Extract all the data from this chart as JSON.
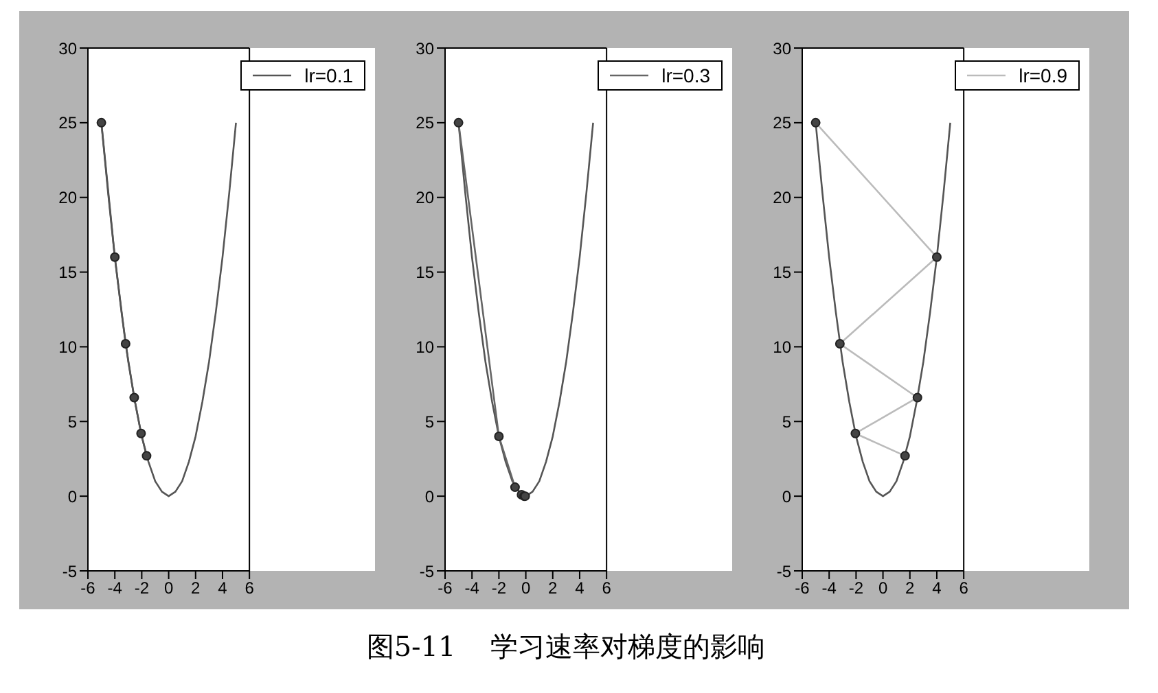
{
  "chart_data": [
    {
      "type": "line",
      "annotations": [
        "图5-11    学习速率对梯度的影响"
      ],
      "xlim": [
        -6,
        6
      ],
      "xticks": [
        -6,
        -4,
        -2,
        0,
        2,
        4,
        6
      ],
      "ylim": [
        -5,
        30
      ],
      "yticks": [
        -5,
        0,
        5,
        10,
        15,
        20,
        25,
        30
      ],
      "legend": "top right",
      "series": [
        {
          "color": "#555555",
          "marker": "none",
          "x": [
            -5,
            -4.5,
            -4,
            -3.5,
            -3,
            -2.5,
            -2,
            -1.5,
            -1,
            -0.5,
            0,
            0.5,
            1,
            1.5,
            2,
            2.5,
            3,
            3.5,
            4,
            4.5,
            5
          ],
          "values": [
            25,
            20.3,
            16,
            12.3,
            9,
            6.3,
            4,
            2.3,
            1,
            0.3,
            0,
            0.3,
            1,
            2.3,
            4,
            6.3,
            9,
            12.3,
            16,
            20.3,
            25
          ]
        },
        {
          "name": "lr=0.1",
          "color": "#555555",
          "marker": "circle",
          "x": [
            -5,
            -4,
            -3.2,
            -2.56,
            -2.05,
            -1.64
          ],
          "values": [
            25,
            16,
            10.2,
            6.6,
            4.2,
            2.7
          ]
        }
      ]
    },
    {
      "type": "line",
      "xlim": [
        -6,
        6
      ],
      "xticks": [
        -6,
        -4,
        -2,
        0,
        2,
        4,
        6
      ],
      "ylim": [
        -5,
        30
      ],
      "yticks": [
        -5,
        0,
        5,
        10,
        15,
        20,
        25,
        30
      ],
      "legend": "top right",
      "series": [
        {
          "color": "#555555",
          "marker": "none",
          "x": [
            -5,
            -4.5,
            -4,
            -3.5,
            -3,
            -2.5,
            -2,
            -1.5,
            -1,
            -0.5,
            0,
            0.5,
            1,
            1.5,
            2,
            2.5,
            3,
            3.5,
            4,
            4.5,
            5
          ],
          "values": [
            25,
            20.3,
            16,
            12.3,
            9,
            6.3,
            4,
            2.3,
            1,
            0.3,
            0,
            0.3,
            1,
            2.3,
            4,
            6.3,
            9,
            12.3,
            16,
            20.3,
            25
          ]
        },
        {
          "name": "lr=0.3",
          "color": "#666666",
          "marker": "circle",
          "x": [
            -5,
            -2,
            -0.8,
            -0.32,
            -0.13,
            -0.05
          ],
          "values": [
            25,
            4,
            0.6,
            0.1,
            0,
            0
          ]
        }
      ]
    },
    {
      "type": "line",
      "xlim": [
        -6,
        6
      ],
      "xticks": [
        -6,
        -4,
        -2,
        0,
        2,
        4,
        6
      ],
      "ylim": [
        -5,
        30
      ],
      "yticks": [
        -5,
        0,
        5,
        10,
        15,
        20,
        25,
        30
      ],
      "legend": "top right",
      "series": [
        {
          "color": "#555555",
          "marker": "none",
          "x": [
            -5,
            -4.5,
            -4,
            -3.5,
            -3,
            -2.5,
            -2,
            -1.5,
            -1,
            -0.5,
            0,
            0.5,
            1,
            1.5,
            2,
            2.5,
            3,
            3.5,
            4,
            4.5,
            5
          ],
          "values": [
            25,
            20.3,
            16,
            12.3,
            9,
            6.3,
            4,
            2.3,
            1,
            0.3,
            0,
            0.3,
            1,
            2.3,
            4,
            6.3,
            9,
            12.3,
            16,
            20.3,
            25
          ]
        },
        {
          "name": "lr=0.9",
          "color": "#bbbbbb",
          "marker": "circle",
          "x": [
            -5,
            4,
            -3.2,
            2.56,
            -2.05,
            1.64
          ],
          "values": [
            25,
            16,
            10.2,
            6.6,
            4.2,
            2.7
          ]
        }
      ]
    }
  ]
}
